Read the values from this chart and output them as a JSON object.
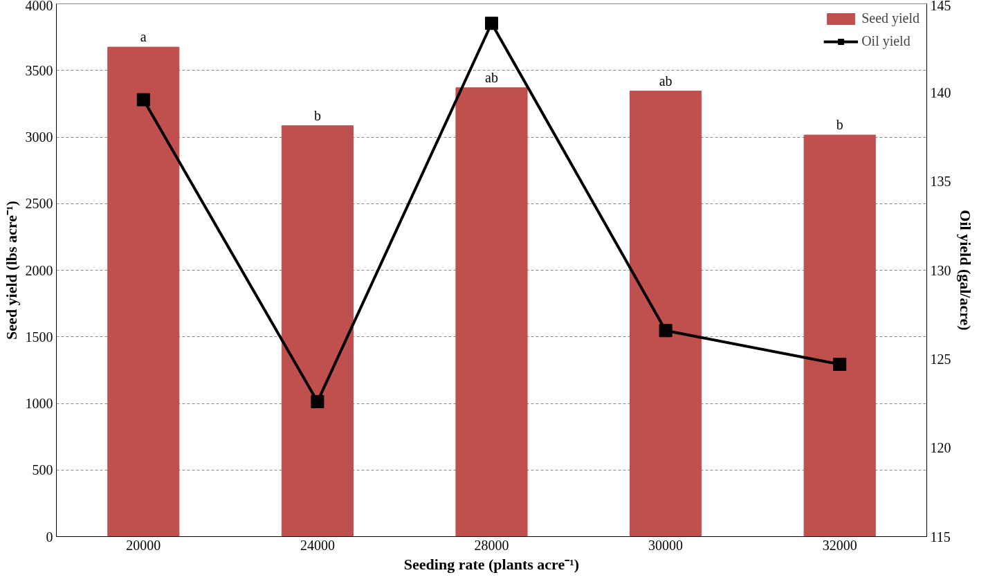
{
  "chart_data": {
    "type": "bar",
    "xlabel": "Seeding rate (plants acre⁻¹)",
    "ylabel": "Seed yield (lbs acre⁻¹)",
    "y2label": "Oil yield (gal/acre)",
    "categories": [
      "20000",
      "24000",
      "28000",
      "30000",
      "32000"
    ],
    "series": [
      {
        "name": "Seed yield",
        "color": "#c0504d",
        "values": [
          3675,
          3085,
          3370,
          3345,
          3015
        ]
      },
      {
        "name": "Oil yield",
        "type": "line",
        "axis": "y2",
        "color": "#000000",
        "marker": "square",
        "values": [
          139.6,
          122.6,
          143.9,
          126.6,
          124.7
        ]
      }
    ],
    "ylim": [
      0,
      4000
    ],
    "yticks": [
      0,
      500,
      1000,
      1500,
      2000,
      2500,
      3000,
      3500,
      4000
    ],
    "y2lim": [
      115,
      145
    ],
    "y2ticks": [
      115,
      120,
      125,
      130,
      135,
      140,
      145
    ],
    "grid": "y",
    "legend": "top right",
    "line_style": "solid",
    "annotations": [
      {
        "text": "a",
        "x": "20000",
        "y": 3675
      },
      {
        "text": "b",
        "x": "24000",
        "y": 3085
      },
      {
        "text": "ab",
        "x": "28000",
        "y": 3370
      },
      {
        "text": "ab",
        "x": "30000",
        "y": 3345
      },
      {
        "text": "b",
        "x": "32000",
        "y": 3015
      }
    ]
  }
}
